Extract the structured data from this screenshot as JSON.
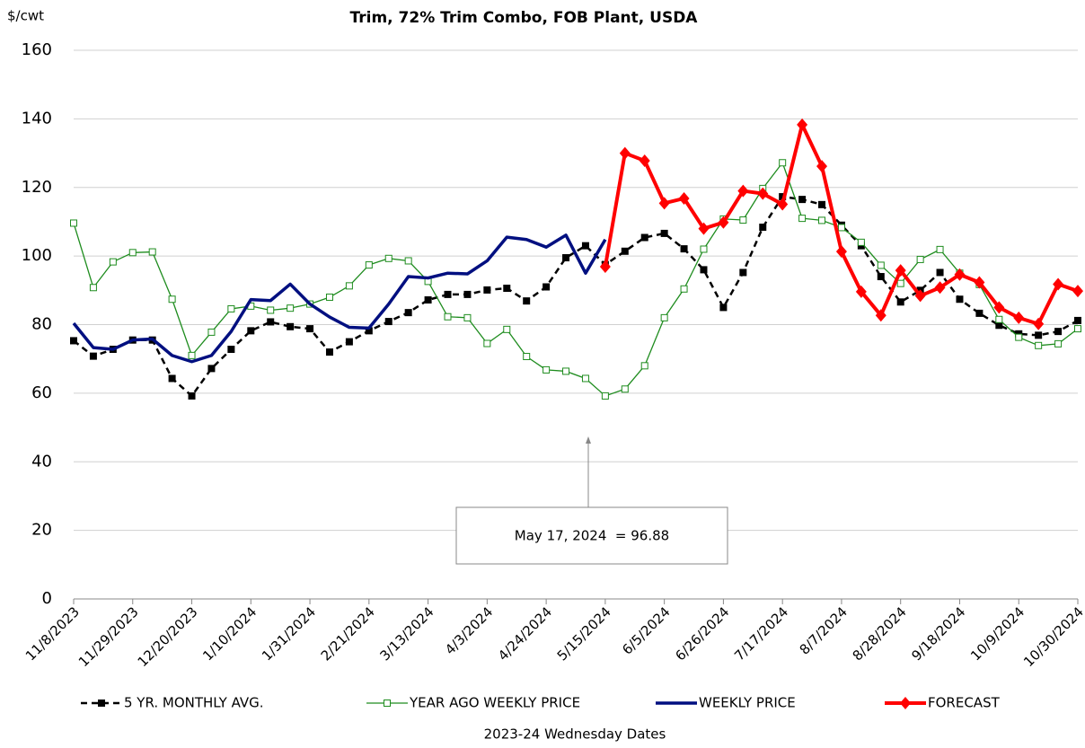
{
  "chart_data": {
    "type": "line",
    "title": "Trim, 72% Trim Combo, FOB Plant, USDA",
    "y_label": "$/cwt",
    "x_label": "2023-24 Wednesday Dates",
    "annotation": "May 17, 2024  = 96.88",
    "categories": [
      "11/8/2023",
      null,
      null,
      "11/29/2023",
      null,
      null,
      "12/20/2023",
      null,
      null,
      "1/10/2024",
      null,
      null,
      "1/31/2024",
      null,
      null,
      "2/21/2024",
      null,
      null,
      "3/13/2024",
      null,
      null,
      "4/3/2024",
      null,
      null,
      "4/24/2024",
      null,
      null,
      "5/15/2024",
      null,
      null,
      "6/5/2024",
      null,
      null,
      "6/26/2024",
      null,
      null,
      "7/17/2024",
      null,
      null,
      "8/7/2024",
      null,
      null,
      "8/28/2024",
      null,
      null,
      "9/18/2024",
      null,
      null,
      "10/9/2024",
      null,
      null,
      "10/30/2024"
    ],
    "ylim": [
      0,
      160
    ],
    "yticks": [
      0,
      20,
      40,
      60,
      80,
      100,
      120,
      140,
      160
    ],
    "grid": true,
    "legend": "bottom",
    "series": [
      {
        "name": "5 YR. MONTHLY AVG.",
        "color": "#000000",
        "style": "dashed-square",
        "values": [
          75.3,
          70.8,
          72.8,
          75.5,
          75.5,
          64.3,
          59.2,
          67.2,
          72.8,
          78.2,
          80.8,
          79.4,
          78.8,
          72,
          75,
          78.2,
          80.9,
          83.5,
          87.2,
          88.8,
          88.8,
          90.1,
          90.6,
          86.9,
          91,
          99.5,
          103,
          97.5,
          101.4,
          105.4,
          106.6,
          102.1,
          96,
          85,
          95.2,
          108.4,
          117.3,
          116.5,
          115,
          109,
          103,
          94,
          86.6,
          90,
          95.2,
          87.4,
          83.3,
          79.8,
          77.3,
          76.9,
          78,
          81.2
        ]
      },
      {
        "name": "YEAR AGO WEEKLY PRICE",
        "color": "#1e8c1e",
        "style": "hollow-square",
        "values": [
          109.6,
          90.8,
          98.3,
          101,
          101.2,
          87.4,
          71,
          77.8,
          84.6,
          85.4,
          84.2,
          84.8,
          86,
          88,
          91.3,
          97.4,
          99.3,
          98.6,
          92.6,
          82.3,
          82,
          74.5,
          78.6,
          70.7,
          66.8,
          66.4,
          64.3,
          59.2,
          61.2,
          68,
          82,
          90.4,
          102,
          110.8,
          110.5,
          119.7,
          127.2,
          111,
          110.4,
          108.3,
          104,
          97.3,
          92,
          99,
          101.9,
          95,
          91.7,
          81.5,
          76.3,
          73.9,
          74.4,
          78.8
        ]
      },
      {
        "name": "WEEKLY PRICE",
        "color": "#000f80",
        "style": "thick",
        "values": [
          80.4,
          73.3,
          72.8,
          75.5,
          75.8,
          71,
          69.2,
          71,
          78,
          87.3,
          87,
          91.8,
          86,
          82.2,
          79.2,
          79,
          86,
          94,
          93.6,
          95,
          94.8,
          98.6,
          105.5,
          104.8,
          102.6,
          106.1,
          95,
          104.8,
          null,
          null,
          null,
          null,
          null,
          null,
          null,
          null,
          null,
          null,
          null,
          null,
          null,
          null,
          null,
          null,
          null,
          null,
          null,
          null,
          null,
          null,
          null,
          null
        ]
      },
      {
        "name": "FORECAST",
        "color": "#ff0000",
        "style": "diamond",
        "values": [
          null,
          null,
          null,
          null,
          null,
          null,
          null,
          null,
          null,
          null,
          null,
          null,
          null,
          null,
          null,
          null,
          null,
          null,
          null,
          null,
          null,
          null,
          null,
          null,
          null,
          null,
          null,
          96.88,
          130,
          127.8,
          115.4,
          116.8,
          108,
          109.8,
          119,
          118.2,
          115.1,
          138.3,
          126.2,
          101.3,
          89.6,
          82.7,
          95.8,
          88.4,
          90.8,
          94.6,
          92.3,
          85,
          82,
          80.2,
          91.8,
          89.8
        ]
      }
    ]
  }
}
